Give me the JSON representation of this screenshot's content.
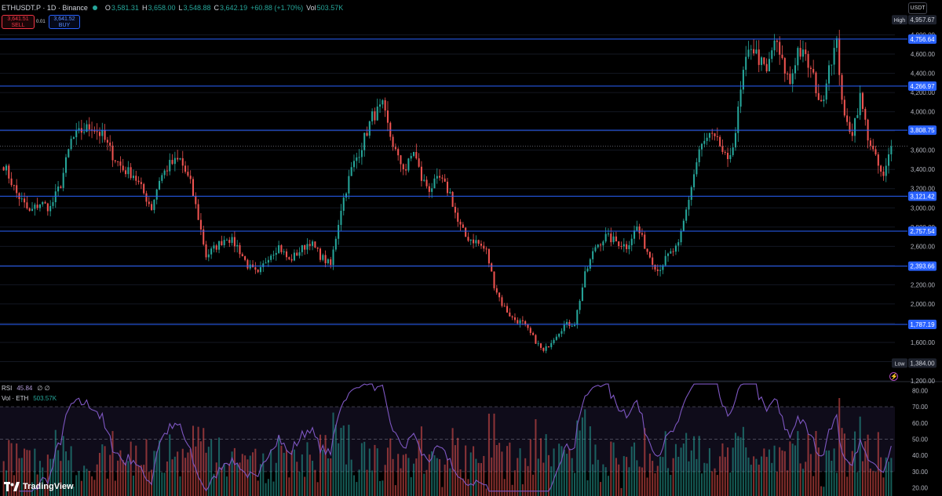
{
  "header": {
    "symbol": "ETHUSDT.P · 1D · Binance",
    "open_label": "O",
    "open": "3,581.31",
    "high_label": "H",
    "high": "3,658.00",
    "low_label": "L",
    "low": "3,548.88",
    "close_label": "C",
    "close": "3,642.19",
    "change": "+60.88 (+1.70%)",
    "vol_label": "Vol",
    "vol": "503.57K"
  },
  "trade": {
    "sell_price": "3,641.51",
    "sell_label": "SELL",
    "spread": "0.01",
    "buy_price": "3,641.52",
    "buy_label": "BUY"
  },
  "currency": "USDT",
  "indicators": {
    "rsi_label": "RSI",
    "rsi_value": "45.84",
    "rsi_extra": "∅ ∅",
    "vol_label": "Vol · ETH",
    "vol_value": "503.57K"
  },
  "brand": "TradingView",
  "colors": {
    "up": "#26a69a",
    "down": "#ef5350",
    "level": "#2962ff",
    "rsi": "#7e57c2",
    "background": "#000000"
  },
  "chart_data": {
    "type": "candlestick",
    "price_axis": {
      "min": 1200,
      "max": 5000,
      "ticks": [
        1200,
        1400,
        1600,
        1800,
        2000,
        2200,
        2400,
        2600,
        2800,
        3000,
        3200,
        3400,
        3600,
        3800,
        4000,
        4200,
        4400,
        4600,
        4800
      ]
    },
    "high_marker": {
      "label": "High",
      "value": 4957.67,
      "text": "4,957.67"
    },
    "low_marker": {
      "label": "Low",
      "value": 1384.0,
      "text": "1,384.00"
    },
    "levels": [
      {
        "value": 4756.64,
        "text": "4,756.64"
      },
      {
        "value": 4266.97,
        "text": "4,266.97"
      },
      {
        "value": 3808.75,
        "text": "3,808.75"
      },
      {
        "value": 3121.42,
        "text": "3,121.42"
      },
      {
        "value": 2757.54,
        "text": "2,757.54"
      },
      {
        "value": 2393.66,
        "text": "2,393.66"
      },
      {
        "value": 1787.19,
        "text": "1,787.19"
      }
    ],
    "last_price": 3642.19,
    "price_path": [
      [
        0,
        3450
      ],
      [
        5,
        3150
      ],
      [
        10,
        2950
      ],
      [
        14,
        3050
      ],
      [
        18,
        3000
      ],
      [
        22,
        3250
      ],
      [
        26,
        3700
      ],
      [
        30,
        3800
      ],
      [
        34,
        3850
      ],
      [
        38,
        3750
      ],
      [
        42,
        3550
      ],
      [
        46,
        3400
      ],
      [
        50,
        3350
      ],
      [
        54,
        3150
      ],
      [
        57,
        3000
      ],
      [
        60,
        3300
      ],
      [
        64,
        3450
      ],
      [
        68,
        3500
      ],
      [
        72,
        3250
      ],
      [
        75,
        2900
      ],
      [
        78,
        2500
      ],
      [
        82,
        2600
      ],
      [
        86,
        2700
      ],
      [
        90,
        2600
      ],
      [
        94,
        2400
      ],
      [
        98,
        2300
      ],
      [
        102,
        2500
      ],
      [
        106,
        2600
      ],
      [
        110,
        2450
      ],
      [
        114,
        2550
      ],
      [
        118,
        2650
      ],
      [
        122,
        2500
      ],
      [
        126,
        2400
      ],
      [
        130,
        3000
      ],
      [
        134,
        3400
      ],
      [
        138,
        3650
      ],
      [
        142,
        3950
      ],
      [
        146,
        4050
      ],
      [
        149,
        3750
      ],
      [
        152,
        3500
      ],
      [
        155,
        3400
      ],
      [
        158,
        3600
      ],
      [
        161,
        3300
      ],
      [
        164,
        3200
      ],
      [
        168,
        3300
      ],
      [
        172,
        3150
      ],
      [
        175,
        2850
      ],
      [
        178,
        2700
      ],
      [
        182,
        2650
      ],
      [
        186,
        2550
      ],
      [
        189,
        2200
      ],
      [
        192,
        2000
      ],
      [
        196,
        1850
      ],
      [
        200,
        1800
      ],
      [
        204,
        1650
      ],
      [
        208,
        1500
      ],
      [
        212,
        1650
      ],
      [
        216,
        1780
      ],
      [
        220,
        1800
      ],
      [
        224,
        2300
      ],
      [
        228,
        2600
      ],
      [
        232,
        2700
      ],
      [
        236,
        2650
      ],
      [
        240,
        2600
      ],
      [
        244,
        2800
      ],
      [
        248,
        2550
      ],
      [
        252,
        2350
      ],
      [
        256,
        2500
      ],
      [
        260,
        2600
      ],
      [
        264,
        3100
      ],
      [
        268,
        3600
      ],
      [
        272,
        3750
      ],
      [
        276,
        3650
      ],
      [
        279,
        3450
      ],
      [
        282,
        3800
      ],
      [
        285,
        4400
      ],
      [
        288,
        4700
      ],
      [
        291,
        4550
      ],
      [
        294,
        4400
      ],
      [
        297,
        4750
      ],
      [
        300,
        4500
      ],
      [
        303,
        4300
      ],
      [
        306,
        4650
      ],
      [
        309,
        4550
      ],
      [
        312,
        4350
      ],
      [
        315,
        4050
      ],
      [
        318,
        4500
      ],
      [
        321,
        4700
      ],
      [
        324,
        3900
      ],
      [
        327,
        3800
      ],
      [
        330,
        4150
      ],
      [
        333,
        3750
      ],
      [
        336,
        3500
      ],
      [
        339,
        3300
      ],
      [
        342,
        3642
      ]
    ],
    "rsi": {
      "label": "RSI",
      "value": 45.84,
      "levels": [
        30,
        70
      ],
      "axis_ticks": [
        20,
        30,
        40,
        50,
        60,
        70,
        80
      ]
    },
    "volume": {
      "label": "Vol · ETH",
      "value": "503.57K"
    }
  }
}
